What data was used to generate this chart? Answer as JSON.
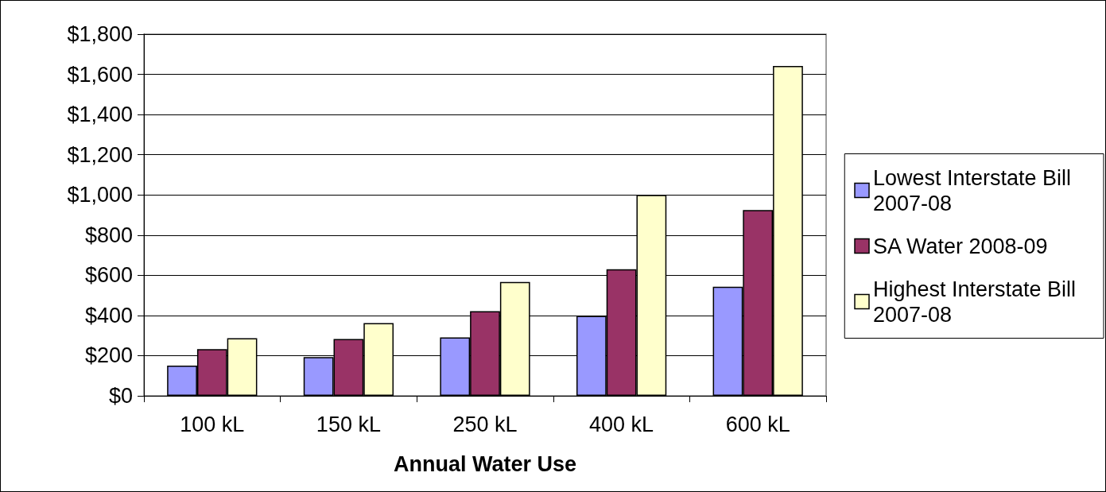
{
  "chart_data": {
    "type": "bar",
    "xlabel": "Annual Water Use",
    "categories": [
      "100 kL",
      "150 kL",
      "250 kL",
      "400 kL",
      "600 kL"
    ],
    "series": [
      {
        "name": "Lowest Interstate Bill 2007-08",
        "color": "#9999ff",
        "values": [
          150,
          193,
          291,
          398,
          543
        ]
      },
      {
        "name": "SA Water 2008-09",
        "color": "#993366",
        "values": [
          232,
          283,
          421,
          630,
          925
        ]
      },
      {
        "name": "Highest Interstate Bill 2007-08",
        "color": "#ffffcc",
        "values": [
          287,
          362,
          567,
          1000,
          1642
        ]
      }
    ],
    "ylim": [
      0,
      1800
    ],
    "yticks": [
      {
        "value": 0,
        "label": "$0"
      },
      {
        "value": 200,
        "label": "$200"
      },
      {
        "value": 400,
        "label": "$400"
      },
      {
        "value": 600,
        "label": "$600"
      },
      {
        "value": 800,
        "label": "$800"
      },
      {
        "value": 1000,
        "label": "$1,000"
      },
      {
        "value": 1200,
        "label": "$1,200"
      },
      {
        "value": 1400,
        "label": "$1,400"
      },
      {
        "value": 1600,
        "label": "$1,600"
      },
      {
        "value": 1800,
        "label": "$1,800"
      }
    ],
    "grid": "y",
    "legend": "right"
  }
}
